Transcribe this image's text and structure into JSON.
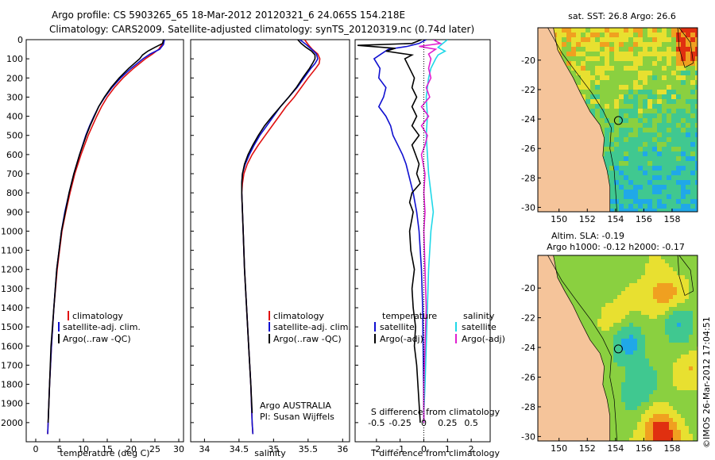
{
  "title": {
    "line1": "Argo profile: CS 5903265_65 18-Mar-2012 20120321_6 24.065S 154.218E",
    "line2": "Climatology: CARS2009. Satellite-adjusted climatology: synTS_20120319.nc (0.74d later)"
  },
  "colors": {
    "climatology": "#e01010",
    "satellite": "#1010d0",
    "argo": "#000000",
    "sat_sal": "#20d8e8",
    "argo_sal": "#e020d0"
  },
  "chart_data": [
    {
      "id": "temperature",
      "type": "line",
      "xlabel": "temperature (deg C)",
      "ylabel": "",
      "xlim": [
        -2,
        31
      ],
      "ylim": [
        2100,
        0
      ],
      "xticks": [
        0,
        5,
        10,
        15,
        20,
        25,
        30
      ],
      "yticks": [
        0,
        100,
        200,
        300,
        400,
        500,
        600,
        700,
        800,
        900,
        1000,
        1100,
        1200,
        1300,
        1400,
        1500,
        1600,
        1700,
        1800,
        1900,
        2000
      ],
      "series": [
        {
          "name": "climatology",
          "color": "#e01010",
          "depth": [
            0,
            25,
            50,
            75,
            100,
            150,
            200,
            250,
            300,
            350,
            400,
            450,
            500,
            600,
            700,
            800,
            900,
            1000,
            1200,
            1400,
            1600,
            1800,
            2000,
            2060
          ],
          "values": [
            26.9,
            26.5,
            25.8,
            24.5,
            23,
            20.5,
            18.3,
            16.5,
            15,
            13.8,
            12.8,
            11.9,
            11,
            9.5,
            8.2,
            7.2,
            6.3,
            5.5,
            4.5,
            3.8,
            3.3,
            2.9,
            2.6,
            2.5
          ]
        },
        {
          "name": "satellite-adj. clim.",
          "color": "#1010d0",
          "depth": [
            0,
            25,
            50,
            75,
            100,
            150,
            200,
            250,
            300,
            350,
            400,
            450,
            500,
            600,
            700,
            800,
            900,
            1000,
            1200,
            1400,
            1600,
            1800,
            2000,
            2060
          ],
          "values": [
            27,
            26.8,
            26,
            24,
            22.5,
            20,
            17.8,
            16,
            14.5,
            13.2,
            12.2,
            11.3,
            10.5,
            9.2,
            8,
            7,
            6.1,
            5.4,
            4.4,
            3.8,
            3.3,
            2.9,
            2.6,
            2.5
          ]
        },
        {
          "name": "Argo(..raw -QC)",
          "color": "#000000",
          "depth": [
            0,
            20,
            40,
            60,
            80,
            100,
            150,
            200,
            250,
            300,
            350,
            400,
            450,
            500,
            600,
            700,
            800,
            900,
            1000,
            1200,
            1400,
            1600,
            1800,
            2000
          ],
          "values": [
            26.8,
            26.6,
            25,
            23.5,
            22.4,
            21.8,
            19.5,
            17.5,
            15.8,
            14.4,
            13.2,
            12.3,
            11.4,
            10.6,
            9.2,
            8,
            7,
            6.2,
            5.4,
            4.4,
            3.8,
            3.2,
            2.9,
            2.6
          ]
        }
      ],
      "legend": [
        "climatology",
        "satellite-adj. clim.",
        "Argo(..raw -QC)"
      ]
    },
    {
      "id": "salinity",
      "type": "line",
      "xlabel": "salinity",
      "xlim": [
        33.8,
        36.1
      ],
      "ylim": [
        2100,
        0
      ],
      "xticks": [
        34,
        34.5,
        35,
        35.5,
        36
      ],
      "series": [
        {
          "name": "climatology",
          "color": "#e01010",
          "depth": [
            0,
            25,
            50,
            75,
            100,
            125,
            150,
            200,
            250,
            300,
            350,
            400,
            450,
            500,
            550,
            600,
            650,
            700,
            750,
            800,
            900,
            1000,
            1200,
            1400,
            1600,
            1800,
            2000,
            2060
          ],
          "values": [
            35.45,
            35.5,
            35.56,
            35.64,
            35.67,
            35.66,
            35.61,
            35.5,
            35.4,
            35.3,
            35.18,
            35.08,
            34.98,
            34.88,
            34.78,
            34.69,
            34.62,
            34.57,
            34.55,
            34.54,
            34.55,
            34.56,
            34.58,
            34.61,
            34.64,
            34.67,
            34.69,
            34.7
          ]
        },
        {
          "name": "satellite-adj. clim.",
          "color": "#1010d0",
          "depth": [
            0,
            25,
            50,
            75,
            100,
            125,
            150,
            200,
            250,
            300,
            350,
            400,
            450,
            500,
            550,
            600,
            650,
            700,
            750,
            800,
            900,
            1000,
            1200,
            1400,
            1600,
            1800,
            2000,
            2060
          ],
          "values": [
            35.38,
            35.47,
            35.55,
            35.62,
            35.64,
            35.6,
            35.54,
            35.44,
            35.34,
            35.22,
            35.1,
            35,
            34.9,
            34.8,
            34.72,
            34.65,
            34.59,
            34.55,
            34.54,
            34.54,
            34.55,
            34.56,
            34.58,
            34.61,
            34.64,
            34.67,
            34.69,
            34.7
          ]
        },
        {
          "name": "Argo(..raw -QC)",
          "color": "#000000",
          "depth": [
            0,
            20,
            40,
            60,
            80,
            100,
            120,
            150,
            200,
            250,
            300,
            350,
            400,
            450,
            500,
            550,
            600,
            650,
            700,
            750,
            800,
            900,
            1000,
            1200,
            1400,
            1600,
            1800,
            1950
          ],
          "values": [
            35.35,
            35.4,
            35.47,
            35.55,
            35.6,
            35.6,
            35.57,
            35.52,
            35.42,
            35.33,
            35.22,
            35.1,
            34.98,
            34.87,
            34.78,
            34.7,
            34.63,
            34.58,
            34.55,
            34.54,
            34.54,
            34.55,
            34.56,
            34.58,
            34.61,
            34.64,
            34.67,
            34.69
          ]
        }
      ],
      "legend": [
        "climatology",
        "satellite-adj. clim.",
        "Argo(..raw -QC)"
      ],
      "annotation": [
        "Argo AUSTRALIA",
        "PI: Susan Wijffels"
      ]
    },
    {
      "id": "difference",
      "type": "line",
      "xlabel": "T difference from climatology",
      "xlabel_top": "S difference from climatology",
      "t_xlim": [
        -2.9,
        2.8
      ],
      "t_xticks": [
        -2,
        -1,
        0,
        1,
        2
      ],
      "s_ticks": [
        {
          "label": "-0.5",
          "t": -2
        },
        {
          "label": "-0.25",
          "t": -1
        },
        {
          "label": "0",
          "t": 0
        },
        {
          "label": "0.25",
          "t": 1
        },
        {
          "label": "0.5",
          "t": 2
        }
      ],
      "ylim": [
        2100,
        0
      ],
      "series": [
        {
          "name": "temperature satellite",
          "color": "#1010d0",
          "depth": [
            0,
            20,
            35,
            50,
            75,
            100,
            150,
            200,
            250,
            300,
            350,
            400,
            450,
            500,
            550,
            600,
            650,
            700,
            750,
            800,
            900,
            1000,
            1100,
            1200,
            1400,
            1600,
            1800,
            2000
          ],
          "values": [
            0.1,
            -0.2,
            -0.7,
            -1.5,
            -1.8,
            -2.1,
            -1.85,
            -1.9,
            -1.6,
            -1.7,
            -1.9,
            -1.6,
            -1.4,
            -1.3,
            -1.1,
            -0.9,
            -0.75,
            -0.65,
            -0.55,
            -0.45,
            -0.3,
            -0.2,
            -0.15,
            -0.1,
            -0.05,
            -0.03,
            -0.01,
            0
          ]
        },
        {
          "name": "temperature Argo(-adj)",
          "color": "#000000",
          "depth": [
            0,
            20,
            30,
            45,
            60,
            80,
            100,
            150,
            200,
            250,
            300,
            350,
            400,
            450,
            500,
            550,
            600,
            650,
            700,
            750,
            800,
            850,
            900,
            1000,
            1100,
            1200,
            1300,
            1400,
            1500,
            1600,
            1700,
            1800,
            1900,
            2000
          ],
          "values": [
            -0.1,
            -0.5,
            -2.8,
            -1.2,
            -1.6,
            -0.5,
            -0.8,
            -0.6,
            -0.4,
            -0.5,
            -0.3,
            -0.5,
            -0.3,
            -0.5,
            -0.2,
            -0.5,
            -0.35,
            -0.2,
            -0.3,
            -0.15,
            -0.5,
            -0.6,
            -0.45,
            -0.6,
            -0.55,
            -0.4,
            -0.5,
            -0.45,
            -0.35,
            -0.4,
            -0.3,
            -0.25,
            -0.2,
            -0.15
          ]
        },
        {
          "name": "salinity satellite",
          "color": "#20d8e8",
          "depth": [
            0,
            20,
            40,
            60,
            80,
            100,
            150,
            200,
            300,
            400,
            500,
            600,
            700,
            800,
            900,
            1000,
            1200,
            1400,
            1600,
            1800,
            1950
          ],
          "values": [
            1.0,
            0.8,
            0.6,
            0.9,
            0.6,
            0.5,
            0.3,
            0.2,
            0.1,
            0.15,
            0.1,
            0.15,
            0.2,
            0.3,
            0.4,
            0.3,
            0.2,
            0.15,
            0.1,
            0.05,
            0
          ]
        },
        {
          "name": "salinity Argo(-adj)",
          "color": "#e020d0",
          "depth": [
            0,
            20,
            35,
            50,
            75,
            100,
            150,
            200,
            250,
            300,
            350,
            400,
            450,
            500,
            550,
            600,
            700,
            800,
            900,
            1000,
            1200,
            1400,
            1600,
            1800,
            2000
          ],
          "values": [
            0.4,
            0.7,
            -0.2,
            0.5,
            0.2,
            0.3,
            0.2,
            0.3,
            0.1,
            0.25,
            -0.1,
            0.2,
            -0.1,
            0.15,
            0.05,
            -0.1,
            0.05,
            0,
            0.05,
            0,
            0.05,
            0.1,
            0.05,
            0,
            0
          ]
        }
      ],
      "legend_temperature": {
        "header": "temperature",
        "items": [
          "satellite",
          "Argo(-adj)"
        ]
      },
      "legend_salinity": {
        "header": "salinity",
        "items": [
          "satellite",
          "Argo(-adj)"
        ]
      }
    },
    {
      "id": "sst-map",
      "type": "heatmap",
      "title": "sat. SST: 26.8  Argo: 26.6",
      "xticks": [
        150,
        152,
        154,
        156,
        158
      ],
      "yticks": [
        -20,
        -22,
        -24,
        -26,
        -28,
        -30
      ],
      "xlim": [
        148.5,
        159.8
      ],
      "ylim": [
        -30.3,
        -17.8
      ],
      "argo_position": {
        "lon": 154.2,
        "lat": -24.1
      }
    },
    {
      "id": "sla-map",
      "type": "heatmap",
      "title_line1": "Altim. SLA: -0.19",
      "title_line2": "Argo h1000: -0.12 h2000: -0.17",
      "xticks": [
        150,
        152,
        154,
        156,
        158
      ],
      "yticks": [
        -20,
        -22,
        -24,
        -26,
        -28,
        -30
      ],
      "xlim": [
        148.5,
        159.8
      ],
      "ylim": [
        -30.3,
        -17.8
      ],
      "argo_position": {
        "lon": 154.2,
        "lat": -24.1
      }
    }
  ],
  "footer_stamp": "©IMOS 26-Mar-2012 17:04:51"
}
